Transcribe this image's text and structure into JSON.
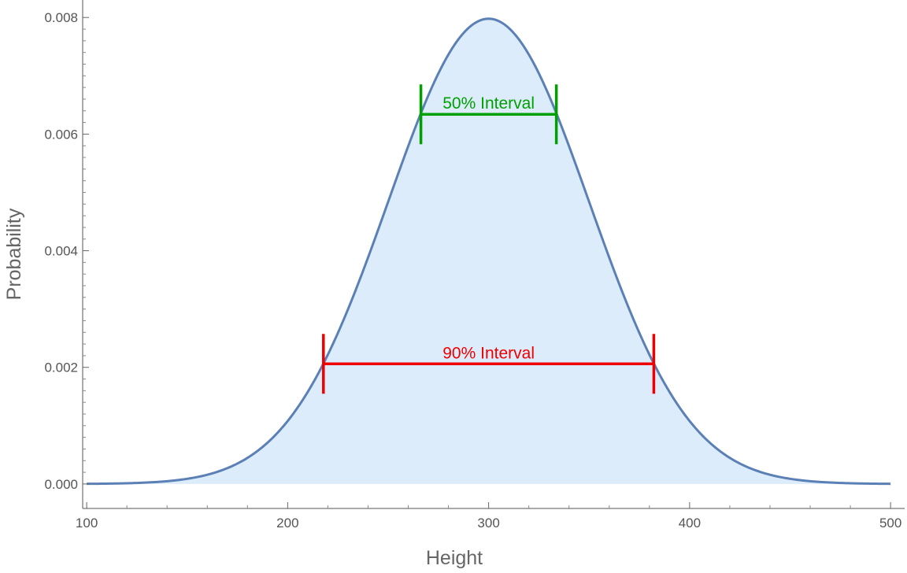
{
  "chart_data": {
    "type": "area",
    "xlabel": "Height",
    "ylabel": "Probability",
    "xlim": [
      98,
      507
    ],
    "ylim": [
      -0.00042,
      0.0083
    ],
    "x_ticks": [
      100,
      200,
      300,
      400,
      500
    ],
    "x_tick_labels": [
      "100",
      "200",
      "300",
      "400",
      "500"
    ],
    "y_ticks": [
      0.0,
      0.002,
      0.004,
      0.006,
      0.008
    ],
    "y_tick_labels": [
      "0.000",
      "0.002",
      "0.004",
      "0.006",
      "0.008"
    ],
    "grid": false,
    "distribution": {
      "family": "normal",
      "mean": 300,
      "sd": 50
    },
    "series": [
      {
        "x": [
          100,
          125,
          150,
          175,
          200,
          225,
          250,
          275,
          300,
          325,
          350,
          375,
          400,
          425,
          450,
          475,
          500
        ],
        "y": [
          2.7e-06,
          1.76e-05,
          8.86e-05,
          0.00035,
          0.00108,
          0.00259,
          0.004839,
          0.007041,
          0.007979,
          0.007041,
          0.004839,
          0.00259,
          0.00108,
          0.00035,
          8.86e-05,
          1.76e-05,
          2.7e-06
        ]
      }
    ],
    "colors": {
      "line": "#5b80b5",
      "fill": "#dcecfb",
      "interval_50": "#00a000",
      "interval_90": "#ee0000"
    },
    "intervals": [
      {
        "label": "50% Interval",
        "low": 266.3,
        "high": 333.7,
        "y": 0.00634,
        "color": "#00a000"
      },
      {
        "label": "90% Interval",
        "low": 217.8,
        "high": 382.2,
        "y": 0.00206,
        "color": "#ee0000"
      }
    ]
  }
}
